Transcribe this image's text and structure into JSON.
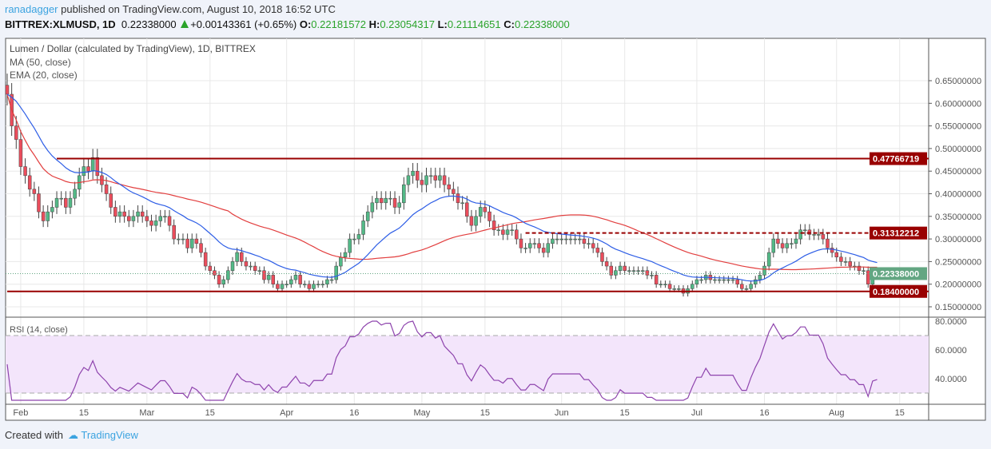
{
  "header": {
    "author": "ranadagger",
    "published": "published on TradingView.com, August 10, 2018 16:52 UTC",
    "symbol": "BITTREX:XLMUSD, 1D",
    "last": "0.22338000",
    "change": "+0.00143361 (+0.65%)",
    "o": "0.22181572",
    "h": "0.23054317",
    "l": "0.21114651",
    "c": "0.22338000"
  },
  "footer": {
    "created": "Created with",
    "brand": "TradingView"
  },
  "chart_data": {
    "type": "candlestick",
    "title": "Lumen / Dollar (calculated by TradingView), 1D, BITTREX",
    "indicators": [
      "MA (50, close)",
      "EMA (20, close)"
    ],
    "rsi_label": "RSI (14, close)",
    "start_date": "2018-01-29",
    "closes": [
      0.62,
      0.55,
      0.52,
      0.46,
      0.44,
      0.41,
      0.4,
      0.36,
      0.34,
      0.36,
      0.37,
      0.39,
      0.39,
      0.37,
      0.39,
      0.41,
      0.44,
      0.46,
      0.45,
      0.48,
      0.44,
      0.42,
      0.4,
      0.37,
      0.35,
      0.36,
      0.35,
      0.34,
      0.35,
      0.36,
      0.35,
      0.34,
      0.33,
      0.34,
      0.35,
      0.35,
      0.33,
      0.3,
      0.3,
      0.3,
      0.28,
      0.3,
      0.29,
      0.27,
      0.24,
      0.23,
      0.22,
      0.2,
      0.21,
      0.23,
      0.25,
      0.27,
      0.25,
      0.24,
      0.24,
      0.23,
      0.23,
      0.21,
      0.22,
      0.2,
      0.19,
      0.2,
      0.2,
      0.21,
      0.22,
      0.2,
      0.2,
      0.19,
      0.2,
      0.2,
      0.2,
      0.21,
      0.21,
      0.24,
      0.26,
      0.27,
      0.3,
      0.3,
      0.31,
      0.34,
      0.36,
      0.38,
      0.39,
      0.38,
      0.39,
      0.39,
      0.37,
      0.38,
      0.42,
      0.44,
      0.45,
      0.43,
      0.42,
      0.44,
      0.44,
      0.43,
      0.44,
      0.42,
      0.41,
      0.4,
      0.38,
      0.38,
      0.35,
      0.33,
      0.35,
      0.37,
      0.36,
      0.34,
      0.32,
      0.32,
      0.31,
      0.32,
      0.32,
      0.3,
      0.28,
      0.28,
      0.29,
      0.29,
      0.28,
      0.27,
      0.29,
      0.3,
      0.3,
      0.3,
      0.3,
      0.3,
      0.3,
      0.3,
      0.29,
      0.29,
      0.28,
      0.27,
      0.25,
      0.24,
      0.22,
      0.23,
      0.24,
      0.23,
      0.23,
      0.23,
      0.23,
      0.23,
      0.22,
      0.22,
      0.2,
      0.2,
      0.2,
      0.19,
      0.19,
      0.19,
      0.18,
      0.19,
      0.2,
      0.21,
      0.21,
      0.22,
      0.21,
      0.21,
      0.21,
      0.21,
      0.21,
      0.21,
      0.2,
      0.19,
      0.19,
      0.2,
      0.21,
      0.22,
      0.24,
      0.27,
      0.3,
      0.29,
      0.28,
      0.29,
      0.29,
      0.3,
      0.32,
      0.32,
      0.31,
      0.31,
      0.31,
      0.3,
      0.28,
      0.27,
      0.26,
      0.25,
      0.25,
      0.24,
      0.24,
      0.23,
      0.23,
      0.2,
      0.221,
      0.22338
    ],
    "y_ticks": [
      "0.65000000",
      "0.60000000",
      "0.55000000",
      "0.50000000",
      "0.45000000",
      "0.40000000",
      "0.35000000",
      "0.30000000",
      "0.25000000",
      "0.20000000",
      "0.15000000"
    ],
    "y_range": [
      0.15,
      0.65
    ],
    "rsi_ticks": [
      "80.0000",
      "60.0000",
      "40.0000"
    ],
    "rsi_band": [
      30,
      70
    ],
    "x_ticks": [
      {
        "date": "2018-02-01",
        "label": "Feb"
      },
      {
        "date": "2018-02-15",
        "label": "15"
      },
      {
        "date": "2018-03-01",
        "label": "Mar"
      },
      {
        "date": "2018-03-15",
        "label": "15"
      },
      {
        "date": "2018-04-01",
        "label": "Apr"
      },
      {
        "date": "2018-04-16",
        "label": "16"
      },
      {
        "date": "2018-05-01",
        "label": "May"
      },
      {
        "date": "2018-05-15",
        "label": "15"
      },
      {
        "date": "2018-06-01",
        "label": "Jun"
      },
      {
        "date": "2018-06-15",
        "label": "15"
      },
      {
        "date": "2018-07-01",
        "label": "Jul"
      },
      {
        "date": "2018-07-16",
        "label": "16"
      },
      {
        "date": "2018-08-01",
        "label": "Aug"
      },
      {
        "date": "2018-08-15",
        "label": "15"
      }
    ],
    "levels": [
      {
        "value": 0.47766719,
        "label": "0.47766719",
        "style": "solid",
        "from": "2018-02-09"
      },
      {
        "value": 0.31312212,
        "label": "0.31312212",
        "style": "dashed",
        "from": "2018-05-24"
      },
      {
        "value": 0.184,
        "label": "0.18400000",
        "style": "solid",
        "from": "2018-01-29"
      }
    ],
    "last_price": {
      "value": 0.22338,
      "label": "0.22338000"
    },
    "colors": {
      "up": "#53b987",
      "down": "#eb4d5c",
      "ma": "#e23e3e",
      "ema": "#2e5ee6",
      "level": "#990000",
      "last": "#63a682",
      "rsi": "#8e44ad",
      "rsi_band": "#f3e5fb"
    }
  }
}
